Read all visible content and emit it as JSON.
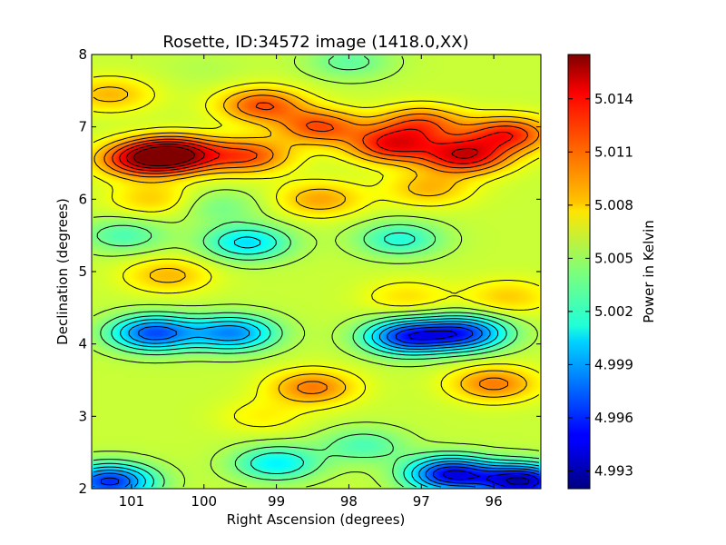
{
  "chart_data": {
    "type": "heatmap",
    "title": "Rosette, ID:34572 image (1418.0,XX)",
    "xlabel": "Right Ascension (degrees)",
    "ylabel": "Declination (degrees)",
    "xlim": [
      101.55,
      95.35
    ],
    "ylim": [
      2,
      8
    ],
    "x_ticks": [
      {
        "value": 101,
        "label": "101"
      },
      {
        "value": 100,
        "label": "100"
      },
      {
        "value": 99,
        "label": "99"
      },
      {
        "value": 98,
        "label": "98"
      },
      {
        "value": 97,
        "label": "97"
      },
      {
        "value": 96,
        "label": "96"
      }
    ],
    "y_ticks": [
      {
        "value": 2,
        "label": "2"
      },
      {
        "value": 3,
        "label": "3"
      },
      {
        "value": 4,
        "label": "4"
      },
      {
        "value": 5,
        "label": "5"
      },
      {
        "value": 6,
        "label": "6"
      },
      {
        "value": 7,
        "label": "7"
      },
      {
        "value": 8,
        "label": "8"
      }
    ],
    "colorbar": {
      "label": "Power in Kelvin",
      "range": [
        4.992,
        5.0165
      ],
      "colormap": "jet",
      "ticks": [
        {
          "value": 4.993,
          "label": "4.993"
        },
        {
          "value": 4.996,
          "label": "4.996"
        },
        {
          "value": 4.999,
          "label": "4.999"
        },
        {
          "value": 5.002,
          "label": "5.002"
        },
        {
          "value": 5.005,
          "label": "5.005"
        },
        {
          "value": 5.008,
          "label": "5.008"
        },
        {
          "value": 5.011,
          "label": "5.011"
        },
        {
          "value": 5.014,
          "label": "5.014"
        }
      ]
    },
    "baseline": 5.006,
    "grid": false,
    "contour_color": "#000000",
    "features": [
      {
        "ra": 100.4,
        "dec": 6.62,
        "value": 5.0155
      },
      {
        "ra": 100.9,
        "dec": 6.55,
        "value": 5.0125
      },
      {
        "ra": 99.4,
        "dec": 6.6,
        "value": 5.0115
      },
      {
        "ra": 97.4,
        "dec": 6.75,
        "value": 5.013
      },
      {
        "ra": 96.4,
        "dec": 6.6,
        "value": 5.014
      },
      {
        "ra": 95.8,
        "dec": 6.9,
        "value": 5.0125
      },
      {
        "ra": 98.4,
        "dec": 7.0,
        "value": 5.0115
      },
      {
        "ra": 99.2,
        "dec": 7.3,
        "value": 5.0115
      },
      {
        "ra": 97.0,
        "dec": 7.05,
        "value": 5.011
      },
      {
        "ra": 101.3,
        "dec": 7.45,
        "value": 5.009
      },
      {
        "ra": 98.4,
        "dec": 6.0,
        "value": 5.0095
      },
      {
        "ra": 96.9,
        "dec": 6.15,
        "value": 5.009
      },
      {
        "ra": 100.7,
        "dec": 6.0,
        "value": 5.0085
      },
      {
        "ra": 100.5,
        "dec": 4.95,
        "value": 5.009
      },
      {
        "ra": 97.2,
        "dec": 4.65,
        "value": 5.008
      },
      {
        "ra": 95.8,
        "dec": 4.65,
        "value": 5.0085
      },
      {
        "ra": 98.5,
        "dec": 3.4,
        "value": 5.0105
      },
      {
        "ra": 96.0,
        "dec": 3.45,
        "value": 5.0105
      },
      {
        "ra": 99.2,
        "dec": 3.0,
        "value": 5.0075
      },
      {
        "ra": 100.7,
        "dec": 4.15,
        "value": 4.997
      },
      {
        "ra": 99.6,
        "dec": 4.15,
        "value": 4.9985
      },
      {
        "ra": 97.2,
        "dec": 4.1,
        "value": 4.9965
      },
      {
        "ra": 96.4,
        "dec": 4.15,
        "value": 4.997
      },
      {
        "ra": 99.4,
        "dec": 5.4,
        "value": 5.0005
      },
      {
        "ra": 97.3,
        "dec": 5.45,
        "value": 5.002
      },
      {
        "ra": 101.1,
        "dec": 5.5,
        "value": 5.003
      },
      {
        "ra": 99.8,
        "dec": 5.9,
        "value": 5.004
      },
      {
        "ra": 98.0,
        "dec": 7.9,
        "value": 5.0035
      },
      {
        "ra": 100.0,
        "dec": 7.8,
        "value": 5.0055
      },
      {
        "ra": 95.6,
        "dec": 2.1,
        "value": 4.9935
      },
      {
        "ra": 96.6,
        "dec": 2.2,
        "value": 4.995
      },
      {
        "ra": 101.3,
        "dec": 2.1,
        "value": 4.996
      },
      {
        "ra": 99.0,
        "dec": 2.35,
        "value": 5.001
      },
      {
        "ra": 97.8,
        "dec": 2.6,
        "value": 5.003
      }
    ]
  }
}
